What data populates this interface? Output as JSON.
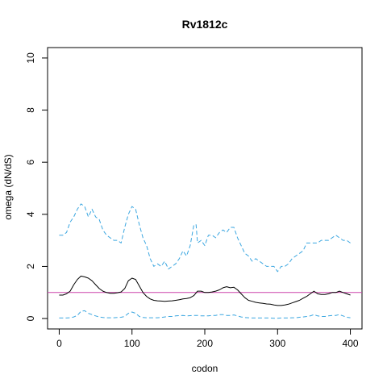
{
  "colors": {
    "omega": "#000000",
    "bounds": "#3aa6e0",
    "reference": "#cc44aa"
  },
  "chart_data": {
    "type": "line",
    "title": "Rv1812c",
    "xlabel": "codon",
    "ylabel": "omega (dN/dS)",
    "xlim": [
      -16,
      416
    ],
    "ylim": [
      -0.4,
      10.4
    ],
    "xticks": [
      0,
      100,
      200,
      300,
      400
    ],
    "yticks": [
      0,
      2,
      4,
      6,
      8,
      10
    ],
    "reference_line": 1,
    "grid": false,
    "legend": "none",
    "series": [
      {
        "style": "dashed-upper",
        "x": [
          0,
          5,
          10,
          15,
          20,
          25,
          30,
          35,
          40,
          45,
          50,
          55,
          60,
          65,
          70,
          75,
          80,
          85,
          90,
          95,
          100,
          105,
          110,
          115,
          120,
          125,
          130,
          135,
          140,
          145,
          150,
          155,
          160,
          165,
          170,
          175,
          180,
          185,
          188,
          190,
          195,
          200,
          205,
          210,
          215,
          220,
          225,
          230,
          235,
          240,
          245,
          250,
          255,
          260,
          265,
          270,
          275,
          280,
          285,
          290,
          295,
          300,
          305,
          310,
          315,
          320,
          325,
          330,
          335,
          340,
          345,
          350,
          355,
          360,
          365,
          370,
          375,
          380,
          385,
          390,
          395,
          400
        ],
        "values": [
          3.2,
          3.2,
          3.3,
          3.7,
          3.9,
          4.2,
          4.4,
          4.3,
          3.9,
          4.2,
          3.9,
          3.8,
          3.4,
          3.2,
          3.1,
          3.0,
          3.0,
          2.9,
          3.5,
          4.0,
          4.3,
          4.2,
          3.6,
          3.1,
          2.8,
          2.3,
          2.0,
          2.1,
          2.0,
          2.2,
          1.9,
          2.0,
          2.1,
          2.3,
          2.6,
          2.4,
          2.8,
          3.6,
          3.6,
          2.9,
          3.0,
          2.8,
          3.2,
          3.2,
          3.1,
          3.3,
          3.4,
          3.3,
          3.5,
          3.5,
          3.1,
          2.8,
          2.5,
          2.4,
          2.2,
          2.3,
          2.2,
          2.1,
          2.0,
          2.0,
          2.0,
          1.8,
          2.0,
          2.0,
          2.1,
          2.3,
          2.4,
          2.5,
          2.6,
          2.9,
          2.9,
          2.9,
          2.9,
          3.0,
          3.0,
          3.0,
          3.1,
          3.2,
          3.1,
          3.0,
          3.0,
          2.9
        ]
      },
      {
        "style": "solid",
        "x": [
          0,
          5,
          10,
          15,
          20,
          25,
          30,
          35,
          40,
          45,
          50,
          55,
          60,
          65,
          70,
          75,
          80,
          85,
          90,
          95,
          100,
          105,
          110,
          115,
          120,
          125,
          130,
          135,
          140,
          145,
          150,
          155,
          160,
          165,
          170,
          175,
          180,
          185,
          190,
          195,
          200,
          205,
          210,
          215,
          220,
          225,
          230,
          235,
          240,
          245,
          250,
          255,
          260,
          265,
          270,
          275,
          280,
          285,
          290,
          295,
          300,
          305,
          310,
          315,
          320,
          325,
          330,
          335,
          340,
          345,
          350,
          355,
          360,
          365,
          370,
          375,
          380,
          385,
          390,
          395,
          400
        ],
        "values": [
          0.9,
          0.9,
          0.95,
          1.05,
          1.3,
          1.5,
          1.63,
          1.6,
          1.55,
          1.45,
          1.3,
          1.15,
          1.05,
          1.0,
          0.97,
          0.97,
          0.99,
          1.02,
          1.15,
          1.45,
          1.55,
          1.5,
          1.25,
          1.0,
          0.85,
          0.75,
          0.7,
          0.68,
          0.67,
          0.66,
          0.67,
          0.68,
          0.7,
          0.72,
          0.75,
          0.77,
          0.8,
          0.88,
          1.05,
          1.05,
          1.0,
          1.0,
          1.02,
          1.05,
          1.1,
          1.18,
          1.22,
          1.18,
          1.2,
          1.1,
          0.95,
          0.8,
          0.7,
          0.66,
          0.62,
          0.6,
          0.58,
          0.56,
          0.55,
          0.52,
          0.5,
          0.5,
          0.52,
          0.55,
          0.6,
          0.65,
          0.7,
          0.78,
          0.85,
          0.95,
          1.05,
          0.95,
          0.92,
          0.92,
          0.95,
          1.0,
          1.0,
          1.05,
          1.0,
          0.95,
          0.9
        ]
      },
      {
        "style": "dashed-lower",
        "x": [
          0,
          5,
          10,
          15,
          20,
          25,
          30,
          35,
          40,
          45,
          50,
          55,
          60,
          65,
          70,
          75,
          80,
          85,
          90,
          95,
          100,
          105,
          110,
          115,
          120,
          125,
          130,
          135,
          140,
          145,
          150,
          155,
          160,
          165,
          170,
          175,
          180,
          185,
          190,
          195,
          200,
          205,
          210,
          215,
          220,
          225,
          230,
          235,
          240,
          245,
          250,
          255,
          260,
          265,
          270,
          275,
          280,
          285,
          290,
          295,
          300,
          305,
          310,
          315,
          320,
          325,
          330,
          335,
          340,
          345,
          350,
          355,
          360,
          365,
          370,
          375,
          380,
          385,
          390,
          395,
          400
        ],
        "values": [
          0.02,
          0.02,
          0.02,
          0.03,
          0.06,
          0.12,
          0.28,
          0.3,
          0.2,
          0.15,
          0.1,
          0.06,
          0.04,
          0.03,
          0.03,
          0.03,
          0.04,
          0.05,
          0.08,
          0.2,
          0.25,
          0.2,
          0.08,
          0.04,
          0.03,
          0.03,
          0.03,
          0.03,
          0.04,
          0.06,
          0.08,
          0.08,
          0.1,
          0.11,
          0.12,
          0.1,
          0.11,
          0.12,
          0.12,
          0.1,
          0.1,
          0.1,
          0.12,
          0.12,
          0.15,
          0.15,
          0.12,
          0.12,
          0.14,
          0.1,
          0.06,
          0.04,
          0.03,
          0.02,
          0.02,
          0.02,
          0.02,
          0.02,
          0.02,
          0.01,
          0.01,
          0.02,
          0.02,
          0.02,
          0.03,
          0.03,
          0.05,
          0.06,
          0.08,
          0.1,
          0.15,
          0.1,
          0.08,
          0.08,
          0.1,
          0.12,
          0.12,
          0.15,
          0.1,
          0.05,
          0.03
        ]
      }
    ]
  }
}
